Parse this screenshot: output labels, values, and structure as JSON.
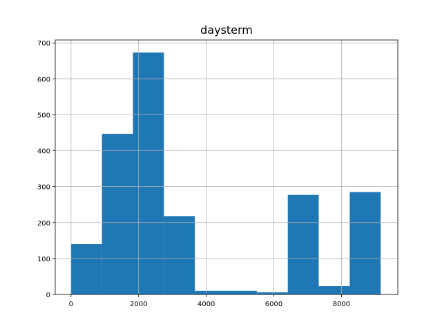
{
  "chart_data": {
    "type": "bar",
    "title": "daysterm",
    "xlabel": "",
    "ylabel": "",
    "xlim": [
      -466,
      9666
    ],
    "ylim": [
      0,
      708
    ],
    "grid": true,
    "bar_color": "#1f77b4",
    "bins": [
      {
        "x0": 0,
        "x1": 916,
        "count": 140
      },
      {
        "x0": 916,
        "x1": 1832,
        "count": 447
      },
      {
        "x0": 1832,
        "x1": 2748,
        "count": 673
      },
      {
        "x0": 2748,
        "x1": 3664,
        "count": 218
      },
      {
        "x0": 3664,
        "x1": 4580,
        "count": 10
      },
      {
        "x0": 4580,
        "x1": 5496,
        "count": 10
      },
      {
        "x0": 5496,
        "x1": 6412,
        "count": 6
      },
      {
        "x0": 6412,
        "x1": 7328,
        "count": 277
      },
      {
        "x0": 7328,
        "x1": 8244,
        "count": 23
      },
      {
        "x0": 8244,
        "x1": 9160,
        "count": 285
      }
    ],
    "xticks": [
      0,
      2000,
      4000,
      6000,
      8000
    ],
    "xtick_labels": [
      "0",
      "2000",
      "4000",
      "6000",
      "8000"
    ],
    "yticks": [
      0,
      100,
      200,
      300,
      400,
      500,
      600,
      700
    ],
    "ytick_labels": [
      "0",
      "100",
      "200",
      "300",
      "400",
      "500",
      "600",
      "700"
    ]
  }
}
